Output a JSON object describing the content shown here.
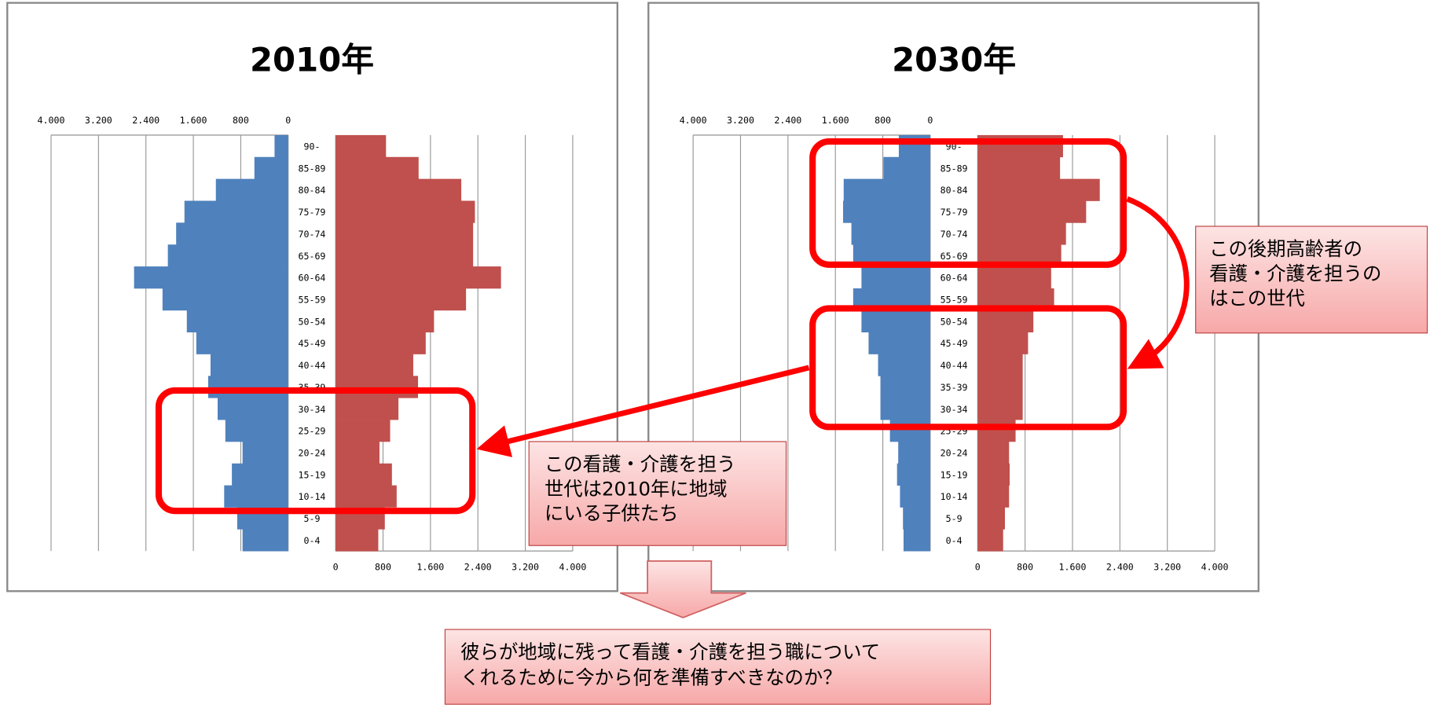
{
  "chart_data": [
    {
      "type": "pyramid",
      "title": "2010年",
      "categories": [
        "90-",
        "85-89",
        "80-84",
        "75-79",
        "70-74",
        "65-69",
        "60-64",
        "55-59",
        "50-54",
        "45-49",
        "40-44",
        "35-39",
        "30-34",
        "25-29",
        "20-24",
        "15-19",
        "10-14",
        "5-9",
        "0-4"
      ],
      "series": [
        {
          "color": "#4f81bd",
          "side": "left",
          "values": [
            230,
            570,
            1220,
            1750,
            1890,
            2030,
            2600,
            2120,
            1710,
            1550,
            1310,
            1350,
            1190,
            1060,
            770,
            950,
            1080,
            860,
            770
          ]
        },
        {
          "color": "#c0504d",
          "side": "right",
          "values": [
            850,
            1400,
            2120,
            2350,
            2320,
            2320,
            2790,
            2200,
            1660,
            1520,
            1310,
            1390,
            1060,
            920,
            740,
            950,
            1030,
            830,
            720
          ]
        }
      ],
      "xlim": [
        0,
        4000
      ],
      "xticks": [
        0,
        {
          "value": 800,
          "label": "800"
        },
        {
          "value": 1600,
          "label": "1.600"
        },
        {
          "value": 2400,
          "label": "2.400"
        },
        {
          "value": 3200,
          "label": "3.200"
        },
        {
          "value": 4000,
          "label": "4.000"
        }
      ],
      "grid": true
    },
    {
      "type": "pyramid",
      "title": "2030年",
      "categories": [
        "90-",
        "85-89",
        "80-84",
        "75-79",
        "70-74",
        "65-69",
        "60-64",
        "55-59",
        "50-54",
        "45-49",
        "40-44",
        "35-39",
        "30-34",
        "25-29",
        "20-24",
        "15-19",
        "10-14",
        "5-9",
        "0-4"
      ],
      "series": [
        {
          "color": "#4f81bd",
          "side": "left",
          "values": [
            530,
            790,
            1460,
            1470,
            1330,
            1300,
            1160,
            1300,
            1160,
            1040,
            880,
            840,
            840,
            680,
            540,
            560,
            510,
            460,
            450
          ]
        },
        {
          "color": "#c0504d",
          "side": "right",
          "values": [
            1440,
            1390,
            2060,
            1830,
            1490,
            1410,
            1240,
            1290,
            940,
            850,
            760,
            760,
            760,
            640,
            530,
            540,
            530,
            460,
            430
          ]
        }
      ],
      "xlim": [
        0,
        4000
      ],
      "xticks": [
        0,
        {
          "value": 800,
          "label": "800"
        },
        {
          "value": 1600,
          "label": "1.600"
        },
        {
          "value": 2400,
          "label": "2.400"
        },
        {
          "value": 3200,
          "label": "3.200"
        },
        {
          "value": 4000,
          "label": "4.000"
        }
      ],
      "grid": true
    }
  ],
  "callouts": [
    [
      "この後期高齢者の",
      "看護・介護を担うの",
      "はこの世代"
    ],
    [
      "この看護・介護を担う",
      "世代は2010年に地域",
      "にいる子供たち"
    ],
    [
      "彼らが地域に残って看護・介護を担う職について",
      "くれるために今から何を準備すべきなのか？"
    ]
  ]
}
